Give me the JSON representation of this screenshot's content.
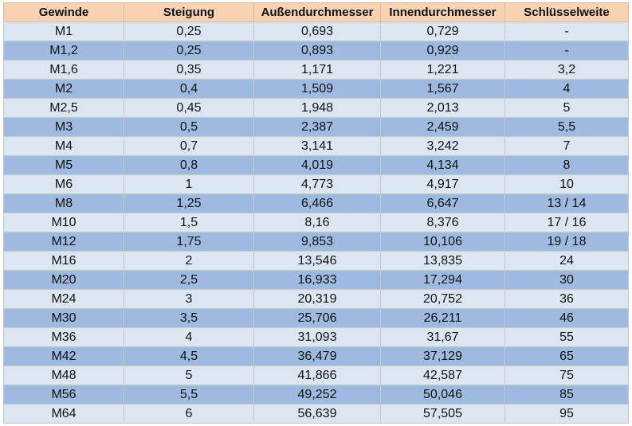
{
  "table": {
    "headers": [
      "Gewinde",
      "Steigung",
      "Außendurchmesser",
      "Innendurchmesser",
      "Schlüsselweite"
    ],
    "rows": [
      [
        "M1",
        "0,25",
        "0,693",
        "0,729",
        "-"
      ],
      [
        "M1,2",
        "0,25",
        "0,893",
        "0,929",
        "-"
      ],
      [
        "M1,6",
        "0,35",
        "1,171",
        "1,221",
        "3,2"
      ],
      [
        "M2",
        "0,4",
        "1,509",
        "1,567",
        "4"
      ],
      [
        "M2,5",
        "0,45",
        "1,948",
        "2,013",
        "5"
      ],
      [
        "M3",
        "0,5",
        "2,387",
        "2,459",
        "5,5"
      ],
      [
        "M4",
        "0,7",
        "3,141",
        "3,242",
        "7"
      ],
      [
        "M5",
        "0,8",
        "4,019",
        "4,134",
        "8"
      ],
      [
        "M6",
        "1",
        "4,773",
        "4,917",
        "10"
      ],
      [
        "M8",
        "1,25",
        "6,466",
        "6,647",
        "13 / 14"
      ],
      [
        "M10",
        "1,5",
        "8,16",
        "8,376",
        "17 / 16"
      ],
      [
        "M12",
        "1,75",
        "9,853",
        "10,106",
        "19 / 18"
      ],
      [
        "M16",
        "2",
        "13,546",
        "13,835",
        "24"
      ],
      [
        "M20",
        "2,5",
        "16,933",
        "17,294",
        "30"
      ],
      [
        "M24",
        "3",
        "20,319",
        "20,752",
        "36"
      ],
      [
        "M30",
        "3,5",
        "25,706",
        "26,211",
        "46"
      ],
      [
        "M36",
        "4",
        "31,093",
        "31,67",
        "55"
      ],
      [
        "M42",
        "4,5",
        "36,479",
        "37,129",
        "65"
      ],
      [
        "M48",
        "5",
        "41,866",
        "42,587",
        "75"
      ],
      [
        "M56",
        "5,5",
        "49,252",
        "50,046",
        "85"
      ],
      [
        "M64",
        "6",
        "56,639",
        "57,505",
        "95"
      ]
    ]
  },
  "colors": {
    "header_bg": "#f9d1b3",
    "row_light": "#dce6f2",
    "row_dark": "#9fbae0"
  }
}
